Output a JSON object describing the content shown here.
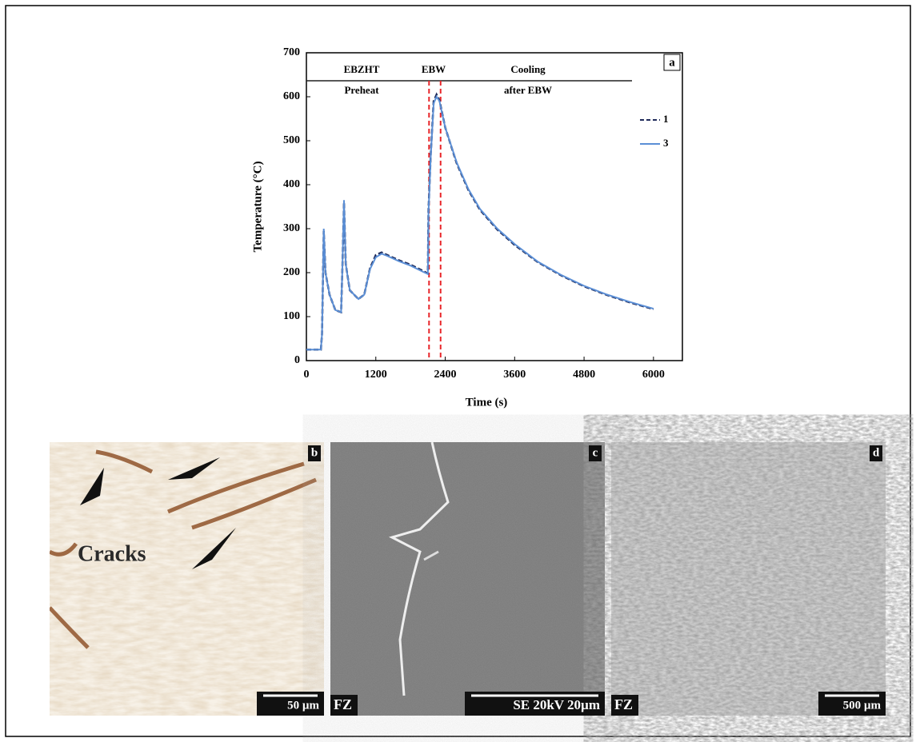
{
  "chart_data": {
    "type": "line",
    "panel_label": "a",
    "xlabel": "Time (s)",
    "ylabel": "Temperature (°C)",
    "xlim": [
      0,
      6500
    ],
    "ylim": [
      0,
      700
    ],
    "xticks": [
      0,
      1200,
      2400,
      3600,
      4800,
      6000
    ],
    "yticks": [
      0,
      100,
      200,
      300,
      400,
      500,
      600,
      700
    ],
    "x": [
      0,
      250,
      270,
      300,
      330,
      400,
      500,
      600,
      620,
      650,
      680,
      750,
      900,
      1000,
      1100,
      1200,
      1300,
      1400,
      1600,
      1800,
      2000,
      2100,
      2110,
      2150,
      2200,
      2250,
      2300,
      2400,
      2600,
      2800,
      3000,
      3300,
      3600,
      4000,
      4400,
      4800,
      5200,
      5600,
      6000
    ],
    "series": [
      {
        "name": "1",
        "color": "#1f2a5a",
        "dash": true,
        "values": [
          25,
          25,
          60,
          295,
          200,
          150,
          115,
          110,
          200,
          360,
          220,
          160,
          140,
          150,
          210,
          240,
          246,
          240,
          228,
          218,
          205,
          198,
          340,
          470,
          590,
          605,
          592,
          530,
          448,
          388,
          343,
          298,
          263,
          224,
          194,
          169,
          149,
          132,
          117
        ]
      },
      {
        "name": "3",
        "color": "#5b8fd6",
        "dash": false,
        "values": [
          25,
          25,
          60,
          300,
          200,
          150,
          115,
          110,
          200,
          365,
          220,
          160,
          140,
          150,
          208,
          235,
          243,
          238,
          226,
          216,
          203,
          197,
          335,
          465,
          585,
          600,
          590,
          530,
          450,
          390,
          345,
          300,
          265,
          225,
          195,
          170,
          150,
          133,
          118
        ]
      }
    ],
    "vlines": [
      2120,
      2320
    ],
    "phases": [
      [
        "EBZHT",
        "Preheat"
      ],
      [
        "EBW"
      ],
      [
        "Cooling",
        "after EBW"
      ]
    ]
  },
  "panels": [
    {
      "label": "b",
      "annotation": "Cracks",
      "scale": "50 µm"
    },
    {
      "label": "c",
      "region": "FZ",
      "scale": "SE  20kV  20µm"
    },
    {
      "label": "d",
      "region": "FZ",
      "scale": "500 µm"
    }
  ]
}
